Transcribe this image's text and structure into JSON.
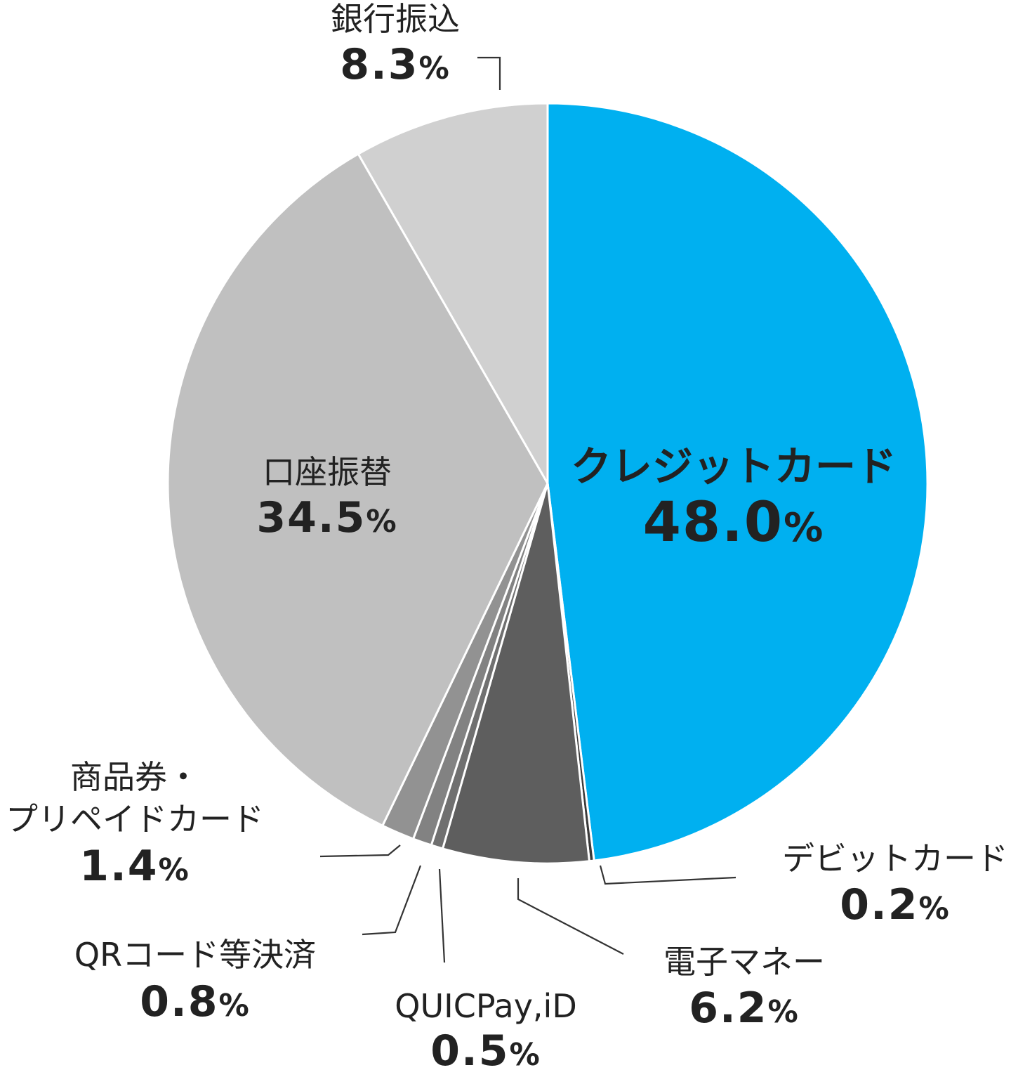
{
  "chart_data": {
    "type": "pie",
    "start": "12 o'clock",
    "direction": "clockwise",
    "slices": [
      {
        "name": "クレジットカード",
        "value": 48.0,
        "value_label": "48.0",
        "color": "#00B0F0"
      },
      {
        "name": "デビットカード",
        "value": 0.2,
        "value_label": "0.2",
        "color": "#3A3A3A"
      },
      {
        "name": "電子マネー",
        "value": 6.2,
        "value_label": "6.2",
        "color": "#5E5E5E"
      },
      {
        "name": "QUICPay,iD",
        "value": 0.5,
        "value_label": "0.5",
        "color": "#707070"
      },
      {
        "name": "QRコード等決済",
        "value": 0.8,
        "value_label": "0.8",
        "color": "#828282"
      },
      {
        "name_lines": [
          "商品券・",
          "プリペイドカード"
        ],
        "value": 1.4,
        "value_label": "1.4",
        "color": "#929292"
      },
      {
        "name": "口座振替",
        "value": 34.5,
        "value_label": "34.5",
        "color": "#C0C0C0"
      },
      {
        "name": "銀行振込",
        "value": 8.3,
        "value_label": "8.3",
        "color": "#D0D0D0"
      }
    ],
    "unit": "%",
    "legend": "none"
  }
}
